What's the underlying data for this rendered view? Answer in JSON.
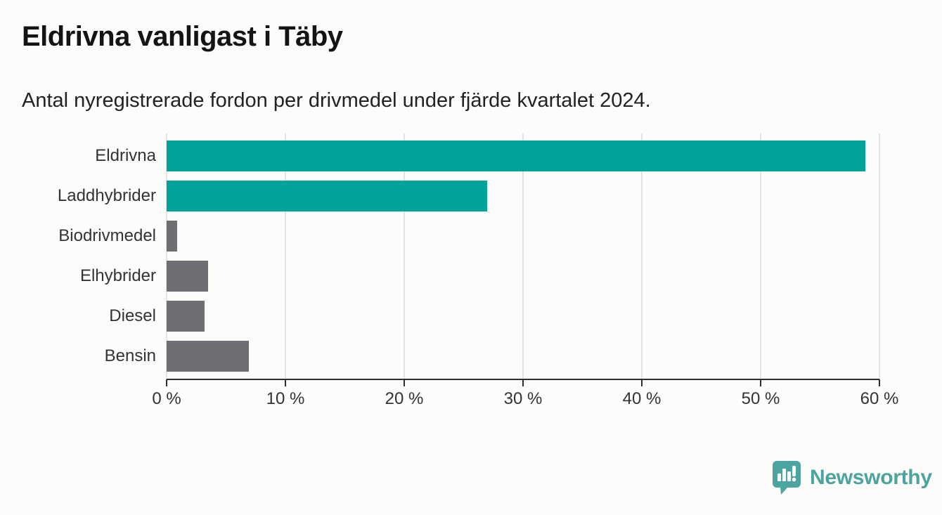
{
  "header": {
    "title": "Eldrivna vanligast i Täby",
    "subtitle": "Antal nyregistrerade fordon per drivmedel under fjärde kvartalet 2024."
  },
  "chart_data": {
    "type": "bar",
    "orientation": "horizontal",
    "title": "Eldrivna vanligast i Täby",
    "subtitle": "Antal nyregistrerade fordon per drivmedel under fjärde kvartalet 2024.",
    "categories": [
      "Eldrivna",
      "Laddhybrider",
      "Biodrivmedel",
      "Elhybrider",
      "Diesel",
      "Bensin"
    ],
    "values": [
      58.8,
      27.0,
      0.9,
      3.5,
      3.2,
      6.9
    ],
    "unit": "%",
    "xlim": [
      0,
      60
    ],
    "x_ticks": [
      0,
      10,
      20,
      30,
      40,
      50,
      60
    ],
    "x_tick_labels": [
      "0 %",
      "10 %",
      "20 %",
      "30 %",
      "40 %",
      "50 %",
      "60 %"
    ],
    "grid": true,
    "legend": false,
    "bar_colors": [
      "#00a29a",
      "#00a29a",
      "#6f6f73",
      "#6f6f73",
      "#6f6f73",
      "#6f6f73"
    ],
    "highlight_color": "#00a29a",
    "default_color": "#6f6f73",
    "gridline_color": "#e3e3e1",
    "axis_color": "#2f2f2f"
  },
  "footer": {
    "brand": "Newsworthy",
    "brand_color": "#4ba49e",
    "logo_icon": "newsworthy-speech-bubble-bar-chart-icon"
  }
}
